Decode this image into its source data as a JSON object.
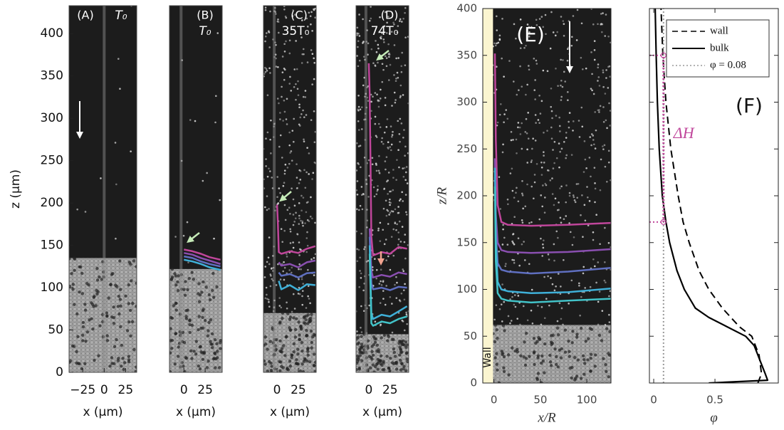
{
  "chart_data": [
    {
      "type": "line",
      "panel": "(A)",
      "label": "T₀",
      "background": "#1c1c1c",
      "ylabel": "z (µm)",
      "xlabel": "x (µm)",
      "xlim": [
        -41,
        38
      ],
      "ylim": [
        0,
        433
      ],
      "xticks": [
        {
          "value": -25,
          "label": "−25"
        },
        0,
        25
      ],
      "yticks": [
        0,
        50,
        100,
        150,
        200,
        250,
        300,
        350,
        400
      ],
      "series": []
    },
    {
      "type": "line",
      "panel": "(B)",
      "label": "T₀",
      "background": "#1c1c1c",
      "xlabel": "x (µm)",
      "xlim": [
        -17,
        45
      ],
      "ylim": [
        0,
        433
      ],
      "xticks": [
        0,
        25
      ],
      "series": [
        {
          "color": "#c0469b",
          "x": [
            0,
            10,
            20,
            30,
            43
          ],
          "y": [
            145,
            143,
            140,
            136,
            133
          ]
        },
        {
          "color": "#8a4fb0",
          "x": [
            0,
            10,
            20,
            30,
            43
          ],
          "y": [
            141,
            139,
            135,
            132,
            128
          ]
        },
        {
          "color": "#5f6fc0",
          "x": [
            0,
            10,
            20,
            30,
            43
          ],
          "y": [
            137,
            135,
            131,
            128,
            125
          ]
        },
        {
          "color": "#3fb0d8",
          "x": [
            0,
            10,
            20,
            30,
            43
          ],
          "y": [
            133,
            131,
            128,
            124,
            121
          ]
        }
      ]
    },
    {
      "type": "line",
      "panel": "(C)",
      "label": "35T₀",
      "background": "#1c1c1c",
      "xlabel": "x (µm)",
      "xlim": [
        -16,
        46
      ],
      "ylim": [
        0,
        433
      ],
      "xticks": [
        0,
        25
      ],
      "series": [
        {
          "color": "#c0469b",
          "x": [
            0,
            1,
            2,
            5,
            15,
            25,
            35,
            45
          ],
          "y": [
            198,
            175,
            142,
            140,
            143,
            141,
            146,
            149
          ]
        },
        {
          "color": "#8a4fb0",
          "x": [
            2,
            5,
            15,
            25,
            35,
            45
          ],
          "y": [
            130,
            126,
            128,
            124,
            130,
            132
          ]
        },
        {
          "color": "#5f6fc0",
          "x": [
            2,
            5,
            15,
            25,
            35,
            45
          ],
          "y": [
            118,
            114,
            116,
            112,
            117,
            118
          ]
        },
        {
          "color": "#3fb0d8",
          "x": [
            2,
            5,
            15,
            25,
            35,
            45
          ],
          "y": [
            108,
            98,
            103,
            97,
            104,
            103
          ]
        }
      ]
    },
    {
      "type": "line",
      "panel": "(D)",
      "label": "74T₀",
      "background": "#1c1c1c",
      "xlabel": "x (µm)",
      "xlim": [
        -15,
        47
      ],
      "ylim": [
        0,
        433
      ],
      "xticks": [
        0,
        25
      ],
      "series": [
        {
          "color": "#c0469b",
          "x": [
            0,
            1,
            2,
            3,
            5,
            15,
            25,
            35,
            45
          ],
          "y": [
            365,
            330,
            250,
            160,
            138,
            142,
            140,
            148,
            146
          ]
        },
        {
          "color": "#8a4fb0",
          "x": [
            1,
            3,
            5,
            15,
            25,
            35,
            45
          ],
          "y": [
            170,
            120,
            112,
            115,
            113,
            118,
            116
          ]
        },
        {
          "color": "#5f6fc0",
          "x": [
            1,
            3,
            5,
            15,
            25,
            35,
            45
          ],
          "y": [
            160,
            105,
            98,
            100,
            97,
            101,
            100
          ]
        },
        {
          "color": "#3fb0d8",
          "x": [
            1,
            3,
            5,
            15,
            25,
            35,
            45
          ],
          "y": [
            150,
            70,
            63,
            68,
            66,
            72,
            78
          ]
        },
        {
          "color": "#42c3c8",
          "x": [
            1,
            3,
            5,
            15,
            25,
            35,
            45
          ],
          "y": [
            140,
            58,
            55,
            60,
            58,
            63,
            66
          ]
        }
      ]
    },
    {
      "type": "line",
      "panel": "(E)",
      "background": "#1c1c1c",
      "wall_label": "Wall",
      "wall_band": [
        -12,
        -1
      ],
      "wall_color": "#fbf5d0",
      "ylabel": "z/R",
      "xlabel": "x/R",
      "xlim": [
        -12,
        126
      ],
      "ylim": [
        0,
        400
      ],
      "xticks": [
        0,
        50,
        100
      ],
      "yticks": [
        0,
        50,
        100,
        150,
        200,
        250,
        300,
        350,
        400
      ],
      "series": [
        {
          "color": "#c0469b",
          "x": [
            1,
            2,
            4,
            8,
            15,
            40,
            80,
            126
          ],
          "y": [
            352,
            260,
            190,
            172,
            169,
            168,
            169,
            171
          ]
        },
        {
          "color": "#8a4fb0",
          "x": [
            1,
            2,
            4,
            8,
            15,
            40,
            80,
            126
          ],
          "y": [
            240,
            180,
            150,
            142,
            140,
            139,
            140,
            143
          ]
        },
        {
          "color": "#5f6fc0",
          "x": [
            1,
            2,
            4,
            8,
            15,
            40,
            80,
            126
          ],
          "y": [
            220,
            160,
            128,
            121,
            119,
            117,
            119,
            123
          ]
        },
        {
          "color": "#3fb0d8",
          "x": [
            1,
            2,
            4,
            8,
            15,
            40,
            80,
            126
          ],
          "y": [
            230,
            150,
            108,
            100,
            98,
            96,
            97,
            101
          ]
        },
        {
          "color": "#42c3c8",
          "x": [
            1,
            2,
            4,
            8,
            15,
            40,
            80,
            126
          ],
          "y": [
            210,
            130,
            96,
            90,
            88,
            86,
            88,
            90
          ]
        }
      ]
    },
    {
      "type": "line",
      "panel": "(F)",
      "background": "#ffffff",
      "xlabel": "φ",
      "xlim": [
        -0.035,
        1.017
      ],
      "ylim": [
        0,
        400
      ],
      "xticks": [
        0,
        0.5
      ],
      "yticks": [
        0,
        50,
        100,
        150,
        200,
        250,
        300,
        350,
        400
      ],
      "ytick_labels": false,
      "series": [
        {
          "name": "wall",
          "color": "#000000",
          "dash": "10 6",
          "x": [
            0.85,
            0.88,
            0.86,
            0.8,
            0.7,
            0.56,
            0.45,
            0.37,
            0.29,
            0.24,
            0.2,
            0.14,
            0.1,
            0.075,
            0.06
          ],
          "y": [
            0,
            10,
            30,
            50,
            60,
            80,
            100,
            120,
            150,
            172,
            200,
            250,
            300,
            350,
            400
          ]
        },
        {
          "name": "bulk",
          "color": "#000000",
          "x": [
            0.45,
            0.93,
            0.91,
            0.88,
            0.85,
            0.82,
            0.75,
            0.6,
            0.45,
            0.34,
            0.25,
            0.19,
            0.13,
            0.1,
            0.07,
            0.045,
            0.03,
            0.02,
            0.012
          ],
          "y": [
            0,
            3,
            10,
            20,
            30,
            40,
            50,
            60,
            70,
            80,
            100,
            120,
            150,
            172,
            200,
            250,
            300,
            350,
            400
          ]
        },
        {
          "name": "φ = 0.08",
          "color": "#999999",
          "dash": "2 3",
          "x": [
            0.08,
            0.08
          ],
          "y": [
            0,
            400
          ]
        }
      ],
      "annotations": [
        {
          "text": "ΔH",
          "color": "#c0469b",
          "x": 0.08,
          "y": [
            172,
            350
          ]
        }
      ]
    }
  ]
}
